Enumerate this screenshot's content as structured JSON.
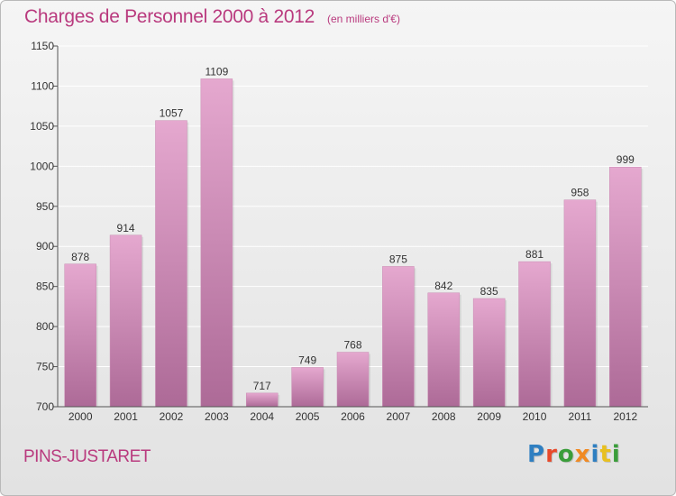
{
  "header": {
    "title": "Charges de Personnel 2000 à 2012",
    "subtitle": "(en milliers d'€)"
  },
  "footer": {
    "place": "PINS-JUSTARET",
    "logo_text": "Proxiti"
  },
  "colors": {
    "accent": "#b93a7e",
    "bar_top": "#e5a8cf",
    "bar_bottom": "#ad6a97",
    "grid": "#ffffff",
    "axis_text": "#333333"
  },
  "chart_data": {
    "type": "bar",
    "title": "Charges de Personnel 2000 à 2012",
    "subtitle": "(en milliers d'€)",
    "categories": [
      "2000",
      "2001",
      "2002",
      "2003",
      "2004",
      "2005",
      "2006",
      "2007",
      "2008",
      "2009",
      "2010",
      "2011",
      "2012"
    ],
    "values": [
      878,
      914,
      1057,
      1109,
      717,
      749,
      768,
      875,
      842,
      835,
      881,
      958,
      999
    ],
    "ylim": [
      700,
      1150
    ],
    "yticks": [
      700,
      750,
      800,
      850,
      900,
      950,
      1000,
      1050,
      1100,
      1150
    ],
    "grid": true,
    "data_labels": true
  }
}
